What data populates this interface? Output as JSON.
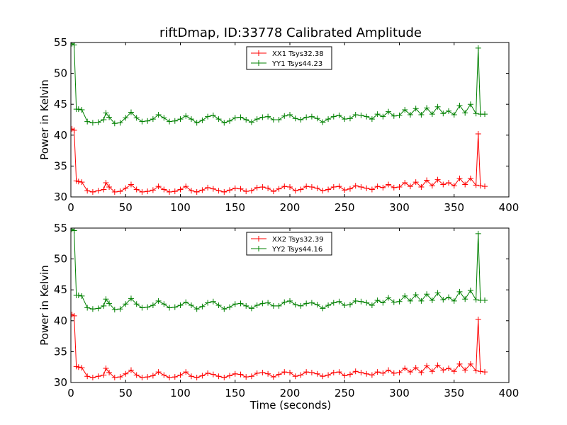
{
  "figure": {
    "title": "riftDmap, ID:33778 Calibrated Amplitude",
    "xlabel": "Time (seconds)"
  },
  "chart_data": [
    {
      "type": "line",
      "ylabel": "Power in Kelvin",
      "xlim": [
        0,
        400
      ],
      "ylim": [
        30,
        55
      ],
      "xticks": [
        0,
        50,
        100,
        150,
        200,
        250,
        300,
        350,
        400
      ],
      "yticks": [
        30,
        35,
        40,
        45,
        50,
        55
      ],
      "legend_position": "top-center",
      "grid": false,
      "series": [
        {
          "name": "XX1 Tsys32.38",
          "color": "#ff0000",
          "x": [
            1,
            3,
            5,
            7,
            10,
            15,
            20,
            25,
            30,
            32,
            35,
            40,
            45,
            50,
            55,
            60,
            65,
            70,
            75,
            80,
            85,
            90,
            95,
            100,
            105,
            110,
            115,
            120,
            125,
            130,
            135,
            140,
            145,
            150,
            155,
            160,
            165,
            170,
            175,
            180,
            185,
            190,
            195,
            200,
            205,
            210,
            215,
            220,
            225,
            230,
            235,
            240,
            245,
            250,
            255,
            260,
            265,
            270,
            275,
            280,
            285,
            290,
            295,
            300,
            305,
            310,
            315,
            320,
            325,
            330,
            335,
            340,
            345,
            350,
            355,
            360,
            365,
            370,
            372,
            374,
            378
          ],
          "y": [
            41,
            40.8,
            32.6,
            32.5,
            32.4,
            31,
            30.8,
            31,
            31.2,
            32.3,
            31.6,
            30.8,
            30.9,
            31.4,
            32.0,
            31.2,
            30.8,
            30.9,
            31.1,
            31.7,
            31.2,
            30.8,
            30.9,
            31.2,
            31.7,
            31.0,
            30.8,
            31.1,
            31.5,
            31.3,
            31.0,
            30.8,
            31.1,
            31.4,
            31.3,
            30.9,
            31.0,
            31.5,
            31.6,
            31.4,
            30.9,
            31.3,
            31.7,
            31.6,
            31.0,
            31.2,
            31.7,
            31.6,
            31.4,
            31.0,
            31.2,
            31.6,
            31.7,
            31.1,
            31.3,
            31.8,
            31.6,
            31.4,
            31.2,
            31.7,
            31.5,
            32.0,
            31.5,
            31.6,
            32.3,
            31.7,
            32.4,
            31.6,
            32.7,
            31.8,
            32.8,
            32.0,
            32.3,
            31.8,
            33.0,
            32.0,
            33.0,
            31.9,
            40.2,
            31.8,
            31.7
          ]
        },
        {
          "name": "YY1 Tsys44.23",
          "color": "#008000",
          "x": [
            1,
            3,
            5,
            7,
            10,
            15,
            20,
            25,
            30,
            32,
            35,
            40,
            45,
            50,
            55,
            60,
            65,
            70,
            75,
            80,
            85,
            90,
            95,
            100,
            105,
            110,
            115,
            120,
            125,
            130,
            135,
            140,
            145,
            150,
            155,
            160,
            165,
            170,
            175,
            180,
            185,
            190,
            195,
            200,
            205,
            210,
            215,
            220,
            225,
            230,
            235,
            240,
            245,
            250,
            255,
            260,
            265,
            270,
            275,
            280,
            285,
            290,
            295,
            300,
            305,
            310,
            315,
            320,
            325,
            330,
            335,
            340,
            345,
            350,
            355,
            360,
            365,
            370,
            372,
            374,
            378
          ],
          "y": [
            54.8,
            54.6,
            44.2,
            44.2,
            44.1,
            42.2,
            42.0,
            42.1,
            42.5,
            43.6,
            42.9,
            41.9,
            42.0,
            42.8,
            43.7,
            42.8,
            42.2,
            42.3,
            42.6,
            43.3,
            42.8,
            42.2,
            42.3,
            42.6,
            43.1,
            42.6,
            42.0,
            42.4,
            43.0,
            43.2,
            42.6,
            42.0,
            42.3,
            42.8,
            42.9,
            42.5,
            42.1,
            42.6,
            42.9,
            43.0,
            42.5,
            42.5,
            43.1,
            43.3,
            42.7,
            42.5,
            42.9,
            43.0,
            42.7,
            42.1,
            42.6,
            43.0,
            43.2,
            42.6,
            42.7,
            43.3,
            43.2,
            43.0,
            42.6,
            43.4,
            43.0,
            43.8,
            43.1,
            43.2,
            44.1,
            43.3,
            44.3,
            43.3,
            44.4,
            43.4,
            44.6,
            43.5,
            43.9,
            43.3,
            44.8,
            43.6,
            45.0,
            43.5,
            54.1,
            43.4,
            43.4
          ]
        }
      ]
    },
    {
      "type": "line",
      "ylabel": "Power in Kelvin",
      "xlim": [
        0,
        400
      ],
      "ylim": [
        30,
        55
      ],
      "xticks": [
        0,
        50,
        100,
        150,
        200,
        250,
        300,
        350,
        400
      ],
      "yticks": [
        30,
        35,
        40,
        45,
        50,
        55
      ],
      "legend_position": "top-center",
      "grid": false,
      "series": [
        {
          "name": "XX2 Tsys32.39",
          "color": "#ff0000",
          "x": [
            1,
            3,
            5,
            7,
            10,
            15,
            20,
            25,
            30,
            32,
            35,
            40,
            45,
            50,
            55,
            60,
            65,
            70,
            75,
            80,
            85,
            90,
            95,
            100,
            105,
            110,
            115,
            120,
            125,
            130,
            135,
            140,
            145,
            150,
            155,
            160,
            165,
            170,
            175,
            180,
            185,
            190,
            195,
            200,
            205,
            210,
            215,
            220,
            225,
            230,
            235,
            240,
            245,
            250,
            255,
            260,
            265,
            270,
            275,
            280,
            285,
            290,
            295,
            300,
            305,
            310,
            315,
            320,
            325,
            330,
            335,
            340,
            345,
            350,
            355,
            360,
            365,
            370,
            372,
            374,
            378
          ],
          "y": [
            41,
            40.8,
            32.6,
            32.5,
            32.4,
            31,
            30.8,
            31,
            31.2,
            32.3,
            31.6,
            30.8,
            30.9,
            31.4,
            32.0,
            31.2,
            30.8,
            30.9,
            31.1,
            31.7,
            31.2,
            30.8,
            30.9,
            31.2,
            31.7,
            31.0,
            30.8,
            31.1,
            31.5,
            31.3,
            31.0,
            30.8,
            31.1,
            31.4,
            31.3,
            30.9,
            31.0,
            31.5,
            31.6,
            31.4,
            30.9,
            31.3,
            31.7,
            31.6,
            31.0,
            31.2,
            31.7,
            31.6,
            31.4,
            31.0,
            31.2,
            31.6,
            31.7,
            31.1,
            31.3,
            31.8,
            31.6,
            31.4,
            31.2,
            31.7,
            31.5,
            32.0,
            31.5,
            31.6,
            32.3,
            31.7,
            32.4,
            31.6,
            32.7,
            31.8,
            32.8,
            32.0,
            32.3,
            31.8,
            33.0,
            32.0,
            33.0,
            31.9,
            40.2,
            31.8,
            31.7
          ]
        },
        {
          "name": "YY2 Tsys44.16",
          "color": "#008000",
          "x": [
            1,
            3,
            5,
            7,
            10,
            15,
            20,
            25,
            30,
            32,
            35,
            40,
            45,
            50,
            55,
            60,
            65,
            70,
            75,
            80,
            85,
            90,
            95,
            100,
            105,
            110,
            115,
            120,
            125,
            130,
            135,
            140,
            145,
            150,
            155,
            160,
            165,
            170,
            175,
            180,
            185,
            190,
            195,
            200,
            205,
            210,
            215,
            220,
            225,
            230,
            235,
            240,
            245,
            250,
            255,
            260,
            265,
            270,
            275,
            280,
            285,
            290,
            295,
            300,
            305,
            310,
            315,
            320,
            325,
            330,
            335,
            340,
            345,
            350,
            355,
            360,
            365,
            370,
            372,
            374,
            378
          ],
          "y": [
            54.8,
            54.6,
            44.1,
            44.1,
            44.0,
            42.1,
            41.9,
            42.0,
            42.4,
            43.5,
            42.8,
            41.8,
            41.9,
            42.7,
            43.6,
            42.7,
            42.1,
            42.2,
            42.5,
            43.2,
            42.7,
            42.1,
            42.2,
            42.5,
            43.0,
            42.5,
            41.9,
            42.3,
            42.9,
            43.1,
            42.5,
            41.9,
            42.2,
            42.7,
            42.8,
            42.4,
            42.0,
            42.5,
            42.8,
            42.9,
            42.4,
            42.4,
            43.0,
            43.2,
            42.6,
            42.4,
            42.8,
            42.9,
            42.6,
            42.0,
            42.5,
            42.9,
            43.1,
            42.5,
            42.6,
            43.2,
            43.1,
            42.9,
            42.5,
            43.3,
            42.9,
            43.7,
            43.0,
            43.1,
            44.0,
            43.2,
            44.2,
            43.2,
            44.3,
            43.3,
            44.5,
            43.4,
            43.8,
            43.2,
            44.7,
            43.5,
            44.9,
            43.4,
            54.1,
            43.3,
            43.3
          ]
        }
      ]
    }
  ]
}
